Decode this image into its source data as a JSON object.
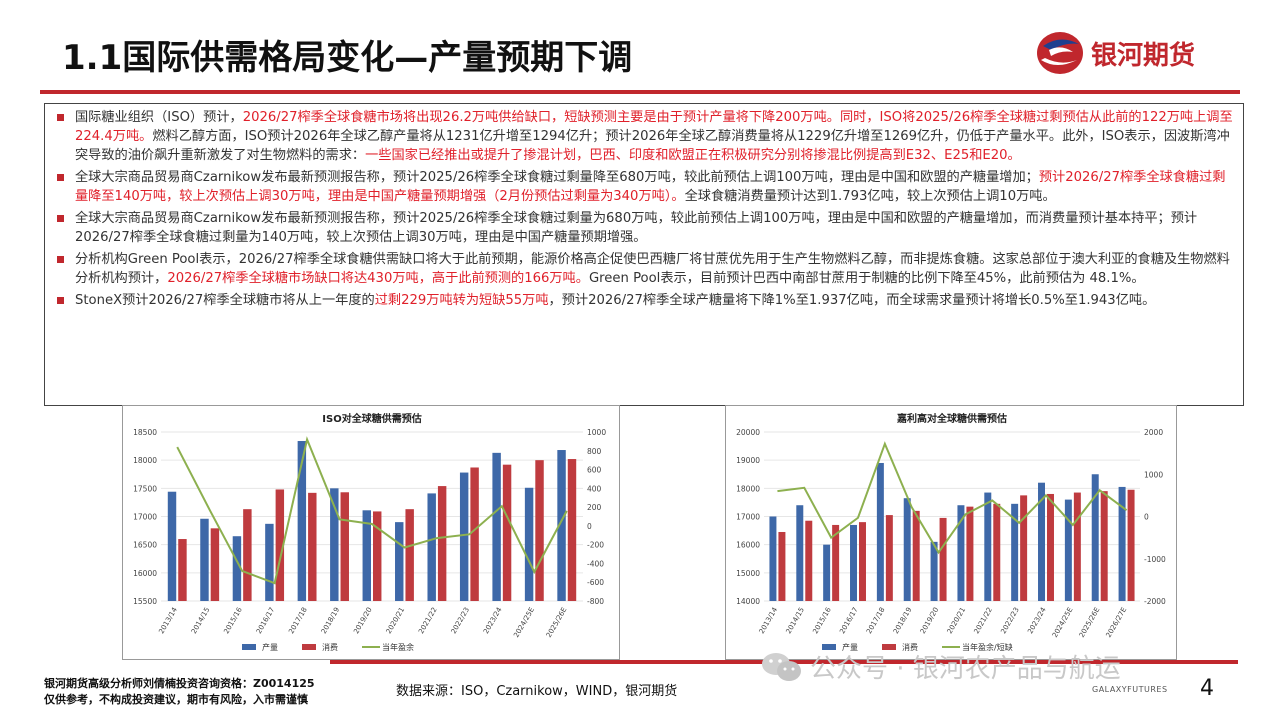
{
  "header": {
    "title": "1.1国际供需格局变化—产量预期下调",
    "logo_text": "银河期货"
  },
  "bullets": [
    {
      "segments": [
        {
          "text": "国际糖业组织（ISO）预计，",
          "red": false
        },
        {
          "text": "2026/27榨季全球食糖市场将出现26.2万吨供给缺口，短缺预测主要是由于预计产量将下降200万吨。同时，ISO将2025/26榨季全球糖过剩预估从此前的122万吨上调至224.4万吨。",
          "red": true
        },
        {
          "text": "燃料乙醇方面，ISO预计2026年全球乙醇产量将从1231亿升增至1294亿升；预计2026年全球乙醇消费量将从1229亿升增至1269亿升，仍低于产量水平。此外，ISO表示，因波斯湾冲突导致的油价飙升重新激发了对生物燃料的需求：",
          "red": false
        },
        {
          "text": "一些国家已经推出或提升了掺混计划，巴西、印度和欧盟正在积极研究分别将掺混比例提高到E32、E25和E20。",
          "red": true
        }
      ]
    },
    {
      "segments": [
        {
          "text": "全球大宗商品贸易商Czarnikow发布最新预测报告称，预计2025/26榨季全球食糖过剩量降至680万吨，较此前预估上调100万吨，理由是中国和欧盟的产糖量增加；",
          "red": false
        },
        {
          "text": "预计2026/27榨季全球食糖过剩量降至140万吨，较上次预估上调30万吨，理由是中国产糖量预期增强（2月份预估过剩量为340万吨）。",
          "red": true
        },
        {
          "text": "全球食糖消费量预计达到1.793亿吨，较上次预估上调10万吨。",
          "red": false
        }
      ]
    },
    {
      "segments": [
        {
          "text": "全球大宗商品贸易商Czarnikow发布最新预测报告称，预计2025/26榨季全球食糖过剩量为680万吨，较此前预估上调100万吨，理由是中国和欧盟的产糖量增加，而消费量预计基本持平；预计2026/27榨季全球食糖过剩量为140万吨，较上次预估上调30万吨，理由是中国产糖量预期增强。",
          "red": false
        }
      ]
    },
    {
      "segments": [
        {
          "text": "分析机构Green Pool表示，2026/27榨季全球食糖供需缺口将大于此前预期，能源价格高企促使巴西糖厂将甘蔗优先用于生产生物燃料乙醇，而非提炼食糖。这家总部位于澳大利亚的食糖及生物燃料分析机构预计，",
          "red": false
        },
        {
          "text": "2026/27榨季全球糖市场缺口将达430万吨，高于此前预测的166万吨。",
          "red": true
        },
        {
          "text": "Green Pool表示，目前预计巴西中南部甘蔗用于制糖的比例下降至45%，此前预估为 48.1%。",
          "red": false
        }
      ]
    },
    {
      "segments": [
        {
          "text": "StoneX预计2026/27榨季全球糖市将从上一年度的",
          "red": false
        },
        {
          "text": "过剩229万吨转为短缺55万吨",
          "red": true
        },
        {
          "text": "，预计2026/27榨季全球产糖量将下降1%至1.937亿吨，而全球需求量预计将增长0.5%至1.943亿吨。",
          "red": false
        }
      ]
    }
  ],
  "chart_data": [
    {
      "type": "bar",
      "title": "ISO对全球糖供需预估",
      "categories": [
        "2013/14",
        "2014/15",
        "2015/16",
        "2016/17",
        "2017/18",
        "2018/19",
        "2019/20",
        "2020/21",
        "2021/22",
        "2022/23",
        "2023/24",
        "2024/25E",
        "2025/26E"
      ],
      "series": [
        {
          "name": "产量",
          "kind": "bar",
          "axis": "left",
          "color": "#3e68a8",
          "values": [
            17440,
            16960,
            16650,
            16870,
            18340,
            17500,
            17110,
            16900,
            17410,
            17780,
            18130,
            17510,
            18180
          ]
        },
        {
          "name": "消费",
          "kind": "bar",
          "axis": "left",
          "color": "#bf3b3f",
          "values": [
            16600,
            16790,
            17130,
            17480,
            17420,
            17430,
            17090,
            17130,
            17540,
            17870,
            17920,
            18000,
            18020
          ]
        },
        {
          "name": "当年盈余",
          "kind": "line",
          "axis": "right",
          "color": "#8db04f",
          "values": [
            840,
            170,
            -480,
            -610,
            920,
            70,
            20,
            -230,
            -130,
            -90,
            210,
            -490,
            160
          ]
        }
      ],
      "ylim_left": [
        15500,
        18500
      ],
      "yticks_left": [
        15500,
        16000,
        16500,
        17000,
        17500,
        18000,
        18500
      ],
      "ylim_right": [
        -800,
        1000
      ],
      "yticks_right": [
        -800,
        -600,
        -400,
        -200,
        0,
        200,
        400,
        600,
        800,
        1000
      ],
      "legend": "bottom"
    },
    {
      "type": "bar",
      "title": "嘉利高对全球糖供需预估",
      "categories": [
        "2013/14",
        "2014/15",
        "2015/16",
        "2016/17",
        "2017/18",
        "2018/19",
        "2019/20",
        "2020/21",
        "2021/22",
        "2022/23",
        "2023/24",
        "2024/25E",
        "2025/26E",
        "2026/27E"
      ],
      "series": [
        {
          "name": "产量",
          "kind": "bar",
          "axis": "left",
          "color": "#3e68a8",
          "values": [
            17000,
            17400,
            16000,
            16700,
            18900,
            17650,
            16100,
            17400,
            17850,
            17450,
            18200,
            17600,
            18500,
            18050
          ]
        },
        {
          "name": "消费",
          "kind": "bar",
          "axis": "left",
          "color": "#bf3b3f",
          "values": [
            16450,
            16850,
            16700,
            16800,
            17050,
            17200,
            16950,
            17350,
            17450,
            17750,
            17800,
            17850,
            17900,
            17950
          ]
        },
        {
          "name": "当年盈余/短缺",
          "kind": "line",
          "axis": "right",
          "color": "#8db04f",
          "values": [
            600,
            680,
            -500,
            -30,
            1720,
            220,
            -850,
            50,
            380,
            -150,
            500,
            -200,
            620,
            150
          ]
        }
      ],
      "ylim_left": [
        14000,
        20000
      ],
      "yticks_left": [
        14000,
        15000,
        16000,
        17000,
        18000,
        19000,
        20000
      ],
      "ylim_right": [
        -2000,
        2000
      ],
      "yticks_right": [
        -2000,
        -1000,
        0,
        1000,
        2000
      ],
      "legend": "bottom"
    }
  ],
  "footer": {
    "disclaimer_line1": "银河期货高级分析师刘倩楠投资咨询资格：Z0014125",
    "disclaimer_line2": "仅供参考，不构成投资建议，期市有风险，入市需谨慎",
    "source": "数据来源：ISO，Czarnikow，WIND，银河期货",
    "watermark": "公众号 · 银河农产品与航运",
    "galaxy": "GALAXYFUTURES",
    "page": "4"
  },
  "colors": {
    "accent": "#c0272d",
    "highlight": "#e0202a"
  }
}
